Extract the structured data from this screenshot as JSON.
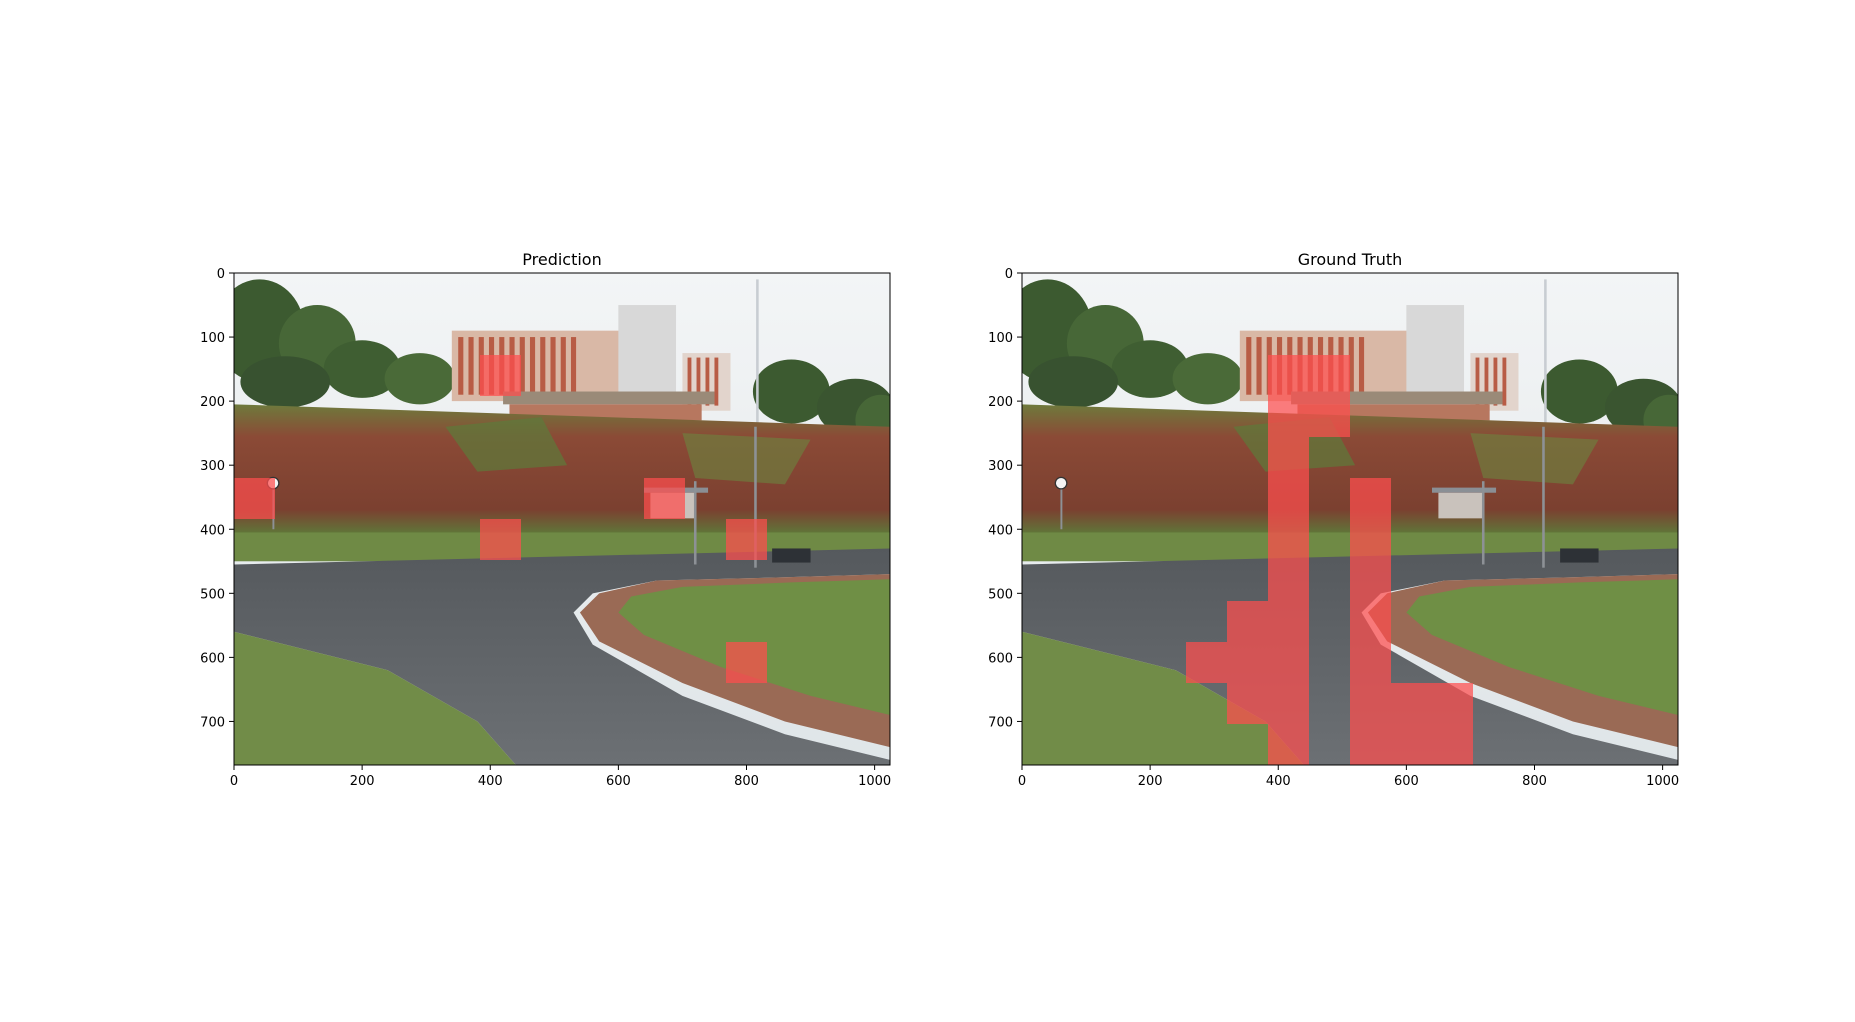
{
  "panels": [
    {
      "title": "Prediction",
      "image_width": 1024,
      "image_height": 768,
      "x_ticks": [
        0,
        200,
        400,
        600,
        800,
        1000
      ],
      "y_ticks": [
        0,
        100,
        200,
        300,
        400,
        500,
        600,
        700
      ],
      "overlay_cells": [
        {
          "x": 384,
          "y": 128,
          "w": 64,
          "h": 64
        },
        {
          "x": 0,
          "y": 320,
          "w": 64,
          "h": 64
        },
        {
          "x": 640,
          "y": 320,
          "w": 64,
          "h": 64
        },
        {
          "x": 384,
          "y": 384,
          "w": 64,
          "h": 64
        },
        {
          "x": 768,
          "y": 384,
          "w": 64,
          "h": 64
        },
        {
          "x": 768,
          "y": 576,
          "w": 64,
          "h": 64
        }
      ]
    },
    {
      "title": "Ground Truth",
      "image_width": 1024,
      "image_height": 768,
      "x_ticks": [
        0,
        200,
        400,
        600,
        800,
        1000
      ],
      "y_ticks": [
        0,
        100,
        200,
        300,
        400,
        500,
        600,
        700
      ],
      "overlay_cells": [
        {
          "x": 384,
          "y": 128,
          "w": 128,
          "h": 128
        },
        {
          "x": 384,
          "y": 256,
          "w": 64,
          "h": 512
        },
        {
          "x": 320,
          "y": 512,
          "w": 64,
          "h": 192
        },
        {
          "x": 256,
          "y": 576,
          "w": 64,
          "h": 64
        },
        {
          "x": 512,
          "y": 320,
          "w": 64,
          "h": 448
        },
        {
          "x": 576,
          "y": 640,
          "w": 128,
          "h": 128
        }
      ]
    }
  ],
  "colors": {
    "overlay": "#ff4d4d",
    "sky": "#e6ebee",
    "trees": "#3f5e32",
    "building": "#c87a64",
    "hill_soil": "#8c4a37",
    "grass": "#6f8a45",
    "road": "#5e6266"
  }
}
